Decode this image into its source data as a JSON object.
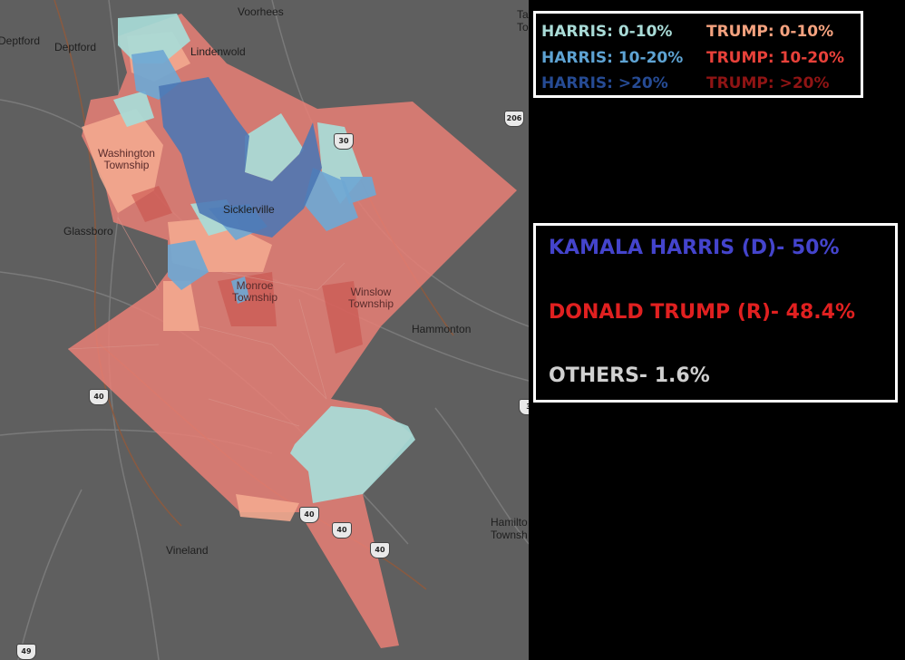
{
  "map": {
    "places": [
      {
        "name": "Voorhees"
      },
      {
        "name": "Deptford"
      },
      {
        "name": "Deptford"
      },
      {
        "name": "Lindenwold"
      },
      {
        "name": "Washington\nTownship"
      },
      {
        "name": "Sicklerville"
      },
      {
        "name": "Glassboro"
      },
      {
        "name": "Monroe\nTownship"
      },
      {
        "name": "Winslow\nTownship"
      },
      {
        "name": "Hammonton"
      },
      {
        "name": "Vineland"
      },
      {
        "name": "Hamilto\nTownsh"
      },
      {
        "name": "Ta\nTo"
      }
    ],
    "route_shields": [
      {
        "number": "30"
      },
      {
        "number": "206"
      },
      {
        "number": "40"
      },
      {
        "number": "40"
      },
      {
        "number": "40"
      },
      {
        "number": "40"
      },
      {
        "number": "49"
      },
      {
        "number": "3"
      }
    ]
  },
  "legend": {
    "items": [
      {
        "label": "HARRIS: 0-10%",
        "color": "#a9dbd7"
      },
      {
        "label": "TRUMP: 0-10%",
        "color": "#f4a27f"
      },
      {
        "label": "HARRIS: 10-20%",
        "color": "#5ea3d3"
      },
      {
        "label": "TRUMP: 10-20%",
        "color": "#e8413a"
      },
      {
        "label": "HARRIS: >20%",
        "color": "#264b94"
      },
      {
        "label": "TRUMP: >20%",
        "color": "#8f1414"
      }
    ]
  },
  "results": {
    "harris": {
      "text": "KAMALA HARRIS (D)- 50%",
      "color": "#4444cc"
    },
    "trump": {
      "text": "DONALD TRUMP (R)- 48.4%",
      "color": "#e02020"
    },
    "others": {
      "text": "OTHERS- 1.6%",
      "color": "#d0d0d0"
    }
  }
}
